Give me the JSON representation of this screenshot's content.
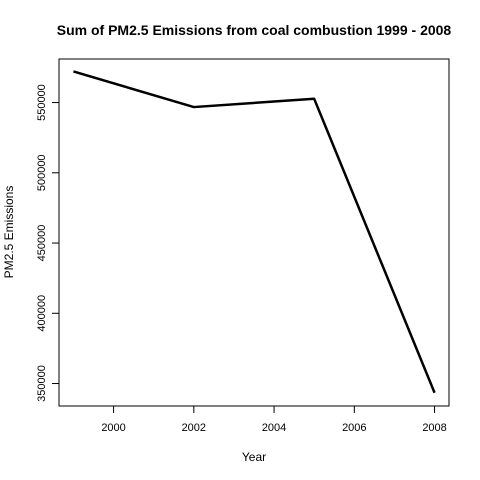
{
  "chart_data": {
    "type": "line",
    "title": "Sum of PM2.5 Emissions from coal combustion 1999 - 2008",
    "xlabel": "Year",
    "ylabel": "PM2.5 Emissions",
    "x": [
      1999,
      2002,
      2005,
      2008
    ],
    "series": [
      {
        "values": [
          572126,
          546789,
          552675,
          343432
        ]
      }
    ],
    "xlim": [
      1998.64,
      2008.36
    ],
    "ylim": [
      334000,
      581000
    ],
    "xticks": [
      "2000",
      "2002",
      "2004",
      "2006",
      "2008"
    ],
    "yticks": [
      "350000",
      "400000",
      "450000",
      "500000",
      "550000"
    ],
    "line_color": "#000000",
    "grid": false,
    "legend": "none"
  }
}
